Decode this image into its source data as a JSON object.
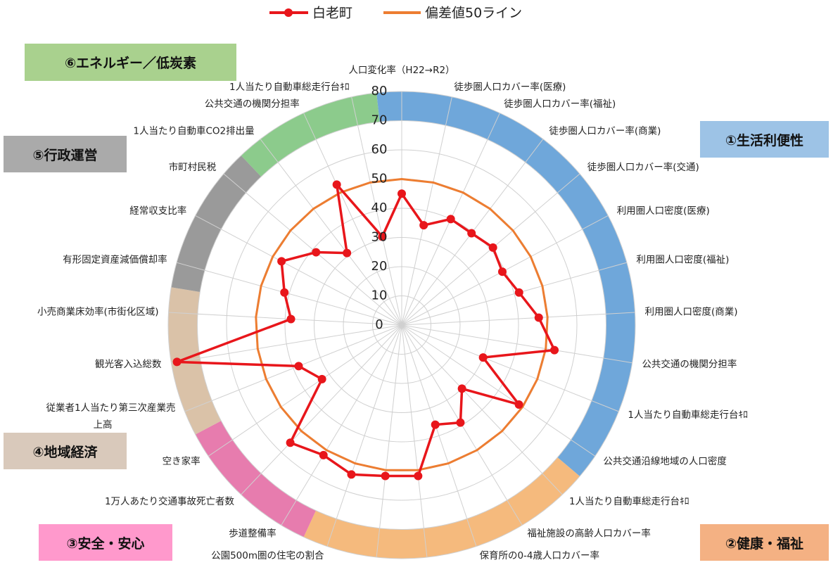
{
  "chart_data": {
    "type": "radar",
    "categories": [
      "人口変化率（H22→R2）",
      "徒歩圏人口カバー率(医療)",
      "徒歩圏人口カバー率(福祉)",
      "徒歩圏人口カバー率(商業)",
      "徒歩圏人口カバー率(交通)",
      "利用圏人口密度(医療)",
      "利用圏人口密度(福祉)",
      "利用圏人口密度(商業)",
      "公共交通の機関分担率",
      "1人当たり自動車総走行台ｷﾛ",
      "公共交通沿線地域の人口密度",
      "1人当たり自動車総走行台ｷﾛ",
      "福祉施設の高齢人口カバー率",
      "保育所の0-4歳人口カバー率",
      "公共交通の機関分担率",
      "歩道整備率",
      "公園500m圏の住宅の割合",
      "歩道整備率",
      "1万人あたり交通事故死亡者数",
      "空き家率",
      "従業者1人当たり第三次産業売上高",
      "観光客入込総数",
      "小売商業床効率(市街化区域)",
      "有形固定資産減価償却率",
      "経常収支比率",
      "市町村民税",
      "1人当たり自動車CO2排出量",
      "公共交通の機関分担率",
      "1人当たり自動車総走行台ｷﾛ"
    ],
    "series": [
      {
        "name": "白老町",
        "color": "#e8161b",
        "values": [
          45,
          35,
          40,
          39.5,
          41,
          39,
          41.7,
          47,
          53,
          30,
          48.5,
          30,
          39,
          36,
          52,
          52,
          54,
          52,
          55.5,
          33,
          38,
          78,
          38,
          41.7,
          46.6,
          38.5,
          31,
          53,
          31
        ]
      },
      {
        "name": "偏差値50ライン",
        "color": "#ed7d31",
        "values": [
          50,
          50,
          50,
          50,
          50,
          50,
          50,
          50,
          50,
          50,
          50,
          50,
          50,
          50,
          50,
          50,
          50,
          50,
          50,
          50,
          50,
          50,
          50,
          50,
          50,
          50,
          50,
          50,
          50
        ]
      }
    ],
    "groups": [
      {
        "label": "①生活利便性",
        "count": 11,
        "color": "#5b9bd5",
        "box_color": "#9dc3e6"
      },
      {
        "label": "②健康・福祉",
        "count": 6,
        "color": "#f4b16b",
        "box_color": "#f4b183"
      },
      {
        "label": "③安全・安心",
        "count": 3,
        "color": "#e46aa3",
        "box_color": "#ff99cc"
      },
      {
        "label": "④地域経済",
        "count": 3,
        "color": "#d5b99c",
        "box_color": "#d9c9bb"
      },
      {
        "label": "⑤行政運営",
        "count": 3,
        "color": "#8c8c8c",
        "box_color": "#aaaaaa"
      },
      {
        "label": "⑥エネルギー／低炭素",
        "count": 3,
        "color": "#7cc47c",
        "box_color": "#a9d18e"
      }
    ],
    "ylim": [
      0,
      80
    ],
    "yticks": [
      0,
      10,
      20,
      30,
      40,
      50,
      60,
      70,
      80
    ],
    "grid": true,
    "legend": "top"
  }
}
